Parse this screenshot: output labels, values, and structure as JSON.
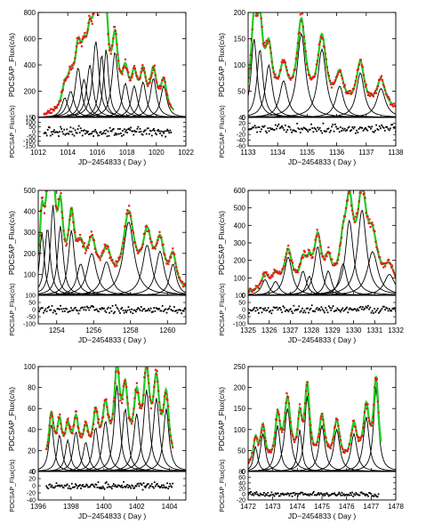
{
  "chart_data": [
    {
      "type": "scatter",
      "xlabel": "JD−2454833 ( Day )",
      "ylabel_top": "PDCSAP_Flux(c/s)",
      "ylabel_bottom": "PDCSAP_Flux(c/s)",
      "xlim": [
        1012,
        1022
      ],
      "xticks": [
        1012,
        1014,
        1016,
        1018,
        1020,
        1022
      ],
      "ylim_top": [
        0,
        800
      ],
      "yticks_top": [
        0,
        200,
        400,
        600,
        800
      ],
      "ylim_bottom": [
        -150,
        150
      ],
      "yticks_bottom": [
        -150,
        -100,
        -50,
        0,
        50,
        100,
        150
      ],
      "peaks": [
        {
          "t": 1013.8,
          "a": 150,
          "w": 0.25
        },
        {
          "t": 1014.2,
          "a": 200,
          "w": 0.28
        },
        {
          "t": 1014.7,
          "a": 380,
          "w": 0.25
        },
        {
          "t": 1015.1,
          "a": 290,
          "w": 0.25
        },
        {
          "t": 1015.5,
          "a": 400,
          "w": 0.25
        },
        {
          "t": 1015.9,
          "a": 580,
          "w": 0.25
        },
        {
          "t": 1016.3,
          "a": 480,
          "w": 0.2
        },
        {
          "t": 1016.6,
          "a": 520,
          "w": 0.2
        },
        {
          "t": 1017.2,
          "a": 500,
          "w": 0.25
        },
        {
          "t": 1017.9,
          "a": 260,
          "w": 0.25
        },
        {
          "t": 1018.5,
          "a": 240,
          "w": 0.25
        },
        {
          "t": 1019.1,
          "a": 270,
          "w": 0.25
        },
        {
          "t": 1019.8,
          "a": 300,
          "w": 0.25
        },
        {
          "t": 1020.5,
          "a": 240,
          "w": 0.25
        }
      ],
      "red_range": [
        1012.4,
        1021.0
      ],
      "green_range": [
        1013.0,
        1021.2
      ],
      "baseline": 5,
      "resid_scale": 60
    },
    {
      "type": "scatter",
      "xlabel": "JD−2454833 ( Day )",
      "ylabel_top": "PDCSAP_Flux(c/s)",
      "ylabel_bottom": "PDCSAP_Flux(c/s)",
      "xlim": [
        1133,
        1138
      ],
      "xticks": [
        1133,
        1134,
        1135,
        1136,
        1137,
        1138
      ],
      "ylim_top": [
        0,
        200
      ],
      "yticks_top": [
        0,
        50,
        100,
        150,
        200
      ],
      "ylim_bottom": [
        -60,
        40
      ],
      "yticks_bottom": [
        -60,
        -40,
        -20,
        0,
        20,
        40
      ],
      "peaks": [
        {
          "t": 1133.2,
          "a": 150,
          "w": 0.12
        },
        {
          "t": 1133.4,
          "a": 130,
          "w": 0.12
        },
        {
          "t": 1133.7,
          "a": 100,
          "w": 0.14
        },
        {
          "t": 1134.2,
          "a": 70,
          "w": 0.16
        },
        {
          "t": 1134.8,
          "a": 160,
          "w": 0.17
        },
        {
          "t": 1135.5,
          "a": 130,
          "w": 0.17
        },
        {
          "t": 1136.1,
          "a": 60,
          "w": 0.16
        },
        {
          "t": 1136.8,
          "a": 85,
          "w": 0.16
        },
        {
          "t": 1137.5,
          "a": 55,
          "w": 0.18
        }
      ],
      "red_range": [
        1132.9,
        1138.0
      ],
      "green_range": [
        1132.9,
        1137.9
      ],
      "baseline": 12,
      "resid_scale": 20
    },
    {
      "type": "scatter",
      "xlabel": "JD−2454833 ( Day )",
      "ylabel_top": "PDCSAP_Flux(c/s)",
      "ylabel_bottom": "PDCSAP_Flux(c/s)",
      "xlim": [
        1253,
        1261
      ],
      "xticks": [
        1254,
        1256,
        1258,
        1260
      ],
      "ylim_top": [
        0,
        500
      ],
      "yticks_top": [
        100,
        200,
        300,
        400,
        500
      ],
      "ylim_bottom": [
        -100,
        100
      ],
      "yticks_bottom": [
        -100,
        -50,
        0,
        50,
        100
      ],
      "peaks": [
        {
          "t": 1253.2,
          "a": 300,
          "w": 0.15
        },
        {
          "t": 1253.5,
          "a": 320,
          "w": 0.18
        },
        {
          "t": 1253.8,
          "a": 430,
          "w": 0.16
        },
        {
          "t": 1254.2,
          "a": 330,
          "w": 0.18
        },
        {
          "t": 1254.8,
          "a": 310,
          "w": 0.2
        },
        {
          "t": 1255.3,
          "a": 150,
          "w": 0.25
        },
        {
          "t": 1255.9,
          "a": 200,
          "w": 0.3
        },
        {
          "t": 1256.7,
          "a": 160,
          "w": 0.3
        },
        {
          "t": 1257.9,
          "a": 350,
          "w": 0.35
        },
        {
          "t": 1258.9,
          "a": 240,
          "w": 0.3
        },
        {
          "t": 1259.6,
          "a": 210,
          "w": 0.28
        },
        {
          "t": 1260.3,
          "a": 150,
          "w": 0.22
        }
      ],
      "red_range": [
        1253.0,
        1261.0
      ],
      "green_range": [
        1253.0,
        1261.0
      ],
      "baseline": 8,
      "resid_scale": 35
    },
    {
      "type": "scatter",
      "xlabel": "JD−2454833 ( Day )",
      "ylabel_top": "PDCSAP_Flux(c/s)",
      "ylabel_bottom": "PDCSAP_Flux(c/s)",
      "xlim": [
        1325,
        1332
      ],
      "xticks": [
        1325,
        1326,
        1327,
        1328,
        1329,
        1330,
        1331,
        1332
      ],
      "ylim_top": [
        0,
        600
      ],
      "yticks_top": [
        0,
        100,
        200,
        300,
        400,
        500,
        600
      ],
      "ylim_bottom": [
        -100,
        100
      ],
      "yticks_bottom": [
        -100,
        -50,
        0,
        50,
        100
      ],
      "peaks": [
        {
          "t": 1325.8,
          "a": 90,
          "w": 0.2
        },
        {
          "t": 1326.3,
          "a": 80,
          "w": 0.2
        },
        {
          "t": 1326.9,
          "a": 220,
          "w": 0.22
        },
        {
          "t": 1327.6,
          "a": 140,
          "w": 0.18
        },
        {
          "t": 1327.9,
          "a": 110,
          "w": 0.16
        },
        {
          "t": 1328.3,
          "a": 280,
          "w": 0.2
        },
        {
          "t": 1328.8,
          "a": 140,
          "w": 0.18
        },
        {
          "t": 1329.5,
          "a": 180,
          "w": 0.2
        },
        {
          "t": 1329.8,
          "a": 430,
          "w": 0.22
        },
        {
          "t": 1330.4,
          "a": 490,
          "w": 0.25
        },
        {
          "t": 1330.9,
          "a": 250,
          "w": 0.3
        },
        {
          "t": 1331.7,
          "a": 120,
          "w": 0.3
        }
      ],
      "red_range": [
        1325.0,
        1332.0
      ],
      "green_range": [
        1325.0,
        1332.0
      ],
      "baseline": 10,
      "resid_scale": 35
    },
    {
      "type": "scatter",
      "xlabel": "JD−2454833 ( Day )",
      "ylabel_top": "PDCSAP_Flux(c/s)",
      "ylabel_bottom": "PDCSAP_Flux(c/s)",
      "xlim": [
        1396,
        1405
      ],
      "xticks": [
        1396,
        1398,
        1400,
        1402,
        1404
      ],
      "ylim_top": [
        0,
        100
      ],
      "yticks_top": [
        0,
        20,
        40,
        60,
        80,
        100
      ],
      "ylim_bottom": [
        -40,
        40
      ],
      "yticks_bottom": [
        -40,
        -20,
        0,
        20,
        40
      ],
      "peaks": [
        {
          "t": 1396.8,
          "a": 45,
          "w": 0.18
        },
        {
          "t": 1397.3,
          "a": 35,
          "w": 0.18
        },
        {
          "t": 1397.8,
          "a": 30,
          "w": 0.18
        },
        {
          "t": 1398.3,
          "a": 38,
          "w": 0.2
        },
        {
          "t": 1398.9,
          "a": 28,
          "w": 0.2
        },
        {
          "t": 1399.5,
          "a": 42,
          "w": 0.2
        },
        {
          "t": 1400.1,
          "a": 48,
          "w": 0.22
        },
        {
          "t": 1400.8,
          "a": 82,
          "w": 0.2
        },
        {
          "t": 1401.3,
          "a": 60,
          "w": 0.2
        },
        {
          "t": 1402.0,
          "a": 55,
          "w": 0.22
        },
        {
          "t": 1402.6,
          "a": 78,
          "w": 0.22
        },
        {
          "t": 1403.2,
          "a": 70,
          "w": 0.22
        },
        {
          "t": 1403.8,
          "a": 60,
          "w": 0.2
        }
      ],
      "red_range": [
        1396.5,
        1404.2
      ],
      "green_range": [
        1396.5,
        1404.2
      ],
      "baseline": 5,
      "resid_scale": 12
    },
    {
      "type": "scatter",
      "xlabel": "JD−2454833 ( Day )",
      "ylabel_top": "PDCSAP_Flux(c/s)",
      "ylabel_bottom": "PDCSAP_Flux(c/s)",
      "xlim": [
        1472,
        1478
      ],
      "xticks": [
        1472,
        1473,
        1474,
        1475,
        1476,
        1477,
        1478
      ],
      "ylim_top": [
        0,
        250
      ],
      "yticks_top": [
        0,
        50,
        100,
        150,
        200,
        250
      ],
      "ylim_bottom": [
        -20,
        80
      ],
      "yticks_bottom": [
        -20,
        0,
        20,
        40,
        60,
        80
      ],
      "peaks": [
        {
          "t": 1472.3,
          "a": 60,
          "w": 0.1
        },
        {
          "t": 1472.6,
          "a": 90,
          "w": 0.12
        },
        {
          "t": 1473.2,
          "a": 110,
          "w": 0.12
        },
        {
          "t": 1473.6,
          "a": 150,
          "w": 0.15
        },
        {
          "t": 1474.1,
          "a": 100,
          "w": 0.1
        },
        {
          "t": 1474.4,
          "a": 180,
          "w": 0.12
        },
        {
          "t": 1475.0,
          "a": 110,
          "w": 0.14
        },
        {
          "t": 1475.6,
          "a": 100,
          "w": 0.15
        },
        {
          "t": 1476.3,
          "a": 90,
          "w": 0.15
        },
        {
          "t": 1476.8,
          "a": 130,
          "w": 0.14
        },
        {
          "t": 1477.2,
          "a": 200,
          "w": 0.12
        }
      ],
      "red_range": [
        1472.0,
        1477.3
      ],
      "green_range": [
        1472.0,
        1477.4
      ],
      "baseline": 8,
      "resid_scale": 10
    }
  ]
}
